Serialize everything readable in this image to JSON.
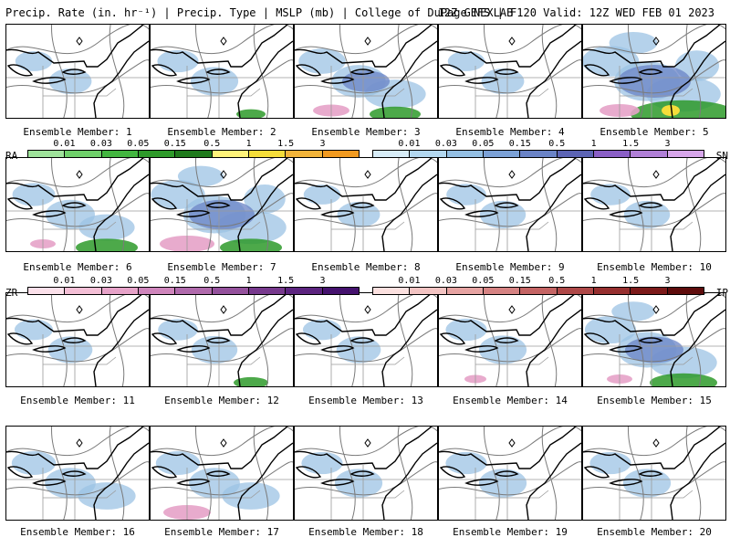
{
  "header": {
    "left": "Precip. Rate (in. hr⁻¹) | Precip. Type | MSLP (mb) | College of DuPage NEXLAB",
    "right": "12Z GEFS | F120 Valid: 12Z WED FEB 01 2023"
  },
  "members": [
    {
      "label": "Ensemble Member: 1",
      "blue": 0.3,
      "pink": 0,
      "green": 0,
      "yellow": 0
    },
    {
      "label": "Ensemble Member: 2",
      "blue": 0.45,
      "pink": 0,
      "green": 0.1,
      "yellow": 0
    },
    {
      "label": "Ensemble Member: 3",
      "blue": 0.65,
      "pink": 0.35,
      "green": 0.3,
      "yellow": 0
    },
    {
      "label": "Ensemble Member: 4",
      "blue": 0.3,
      "pink": 0,
      "green": 0,
      "yellow": 0
    },
    {
      "label": "Ensemble Member: 5",
      "blue": 1.0,
      "pink": 0.4,
      "green": 0.8,
      "yellow": 0.3
    },
    {
      "label": "Ensemble Member: 6",
      "blue": 0.5,
      "pink": 0.2,
      "green": 0.4,
      "yellow": 0
    },
    {
      "label": "Ensemble Member: 7",
      "blue": 0.9,
      "pink": 0.6,
      "green": 0.4,
      "yellow": 0
    },
    {
      "label": "Ensemble Member: 8",
      "blue": 0.3,
      "pink": 0,
      "green": 0,
      "yellow": 0
    },
    {
      "label": "Ensemble Member: 9",
      "blue": 0.4,
      "pink": 0,
      "green": 0,
      "yellow": 0
    },
    {
      "label": "Ensemble Member: 10",
      "blue": 0.4,
      "pink": 0,
      "green": 0,
      "yellow": 0
    },
    {
      "label": "Ensemble Member: 11",
      "blue": 0.35,
      "pink": 0,
      "green": 0,
      "yellow": 0
    },
    {
      "label": "Ensemble Member: 12",
      "blue": 0.4,
      "pink": 0,
      "green": 0.15,
      "yellow": 0
    },
    {
      "label": "Ensemble Member: 13",
      "blue": 0.35,
      "pink": 0,
      "green": 0,
      "yellow": 0
    },
    {
      "label": "Ensemble Member: 14",
      "blue": 0.45,
      "pink": 0.15,
      "green": 0,
      "yellow": 0
    },
    {
      "label": "Ensemble Member: 15",
      "blue": 0.8,
      "pink": 0.2,
      "green": 0.45,
      "yellow": 0
    },
    {
      "label": "Ensemble Member: 16",
      "blue": 0.55,
      "pink": 0,
      "green": 0,
      "yellow": 0
    },
    {
      "label": "Ensemble Member: 17",
      "blue": 0.55,
      "pink": 0.5,
      "green": 0,
      "yellow": 0
    },
    {
      "label": "Ensemble Member: 18",
      "blue": 0.45,
      "pink": 0,
      "green": 0,
      "yellow": 0
    },
    {
      "label": "Ensemble Member: 19",
      "blue": 0.45,
      "pink": 0,
      "green": 0,
      "yellow": 0
    },
    {
      "label": "Ensemble Member: 20",
      "blue": 0.45,
      "pink": 0,
      "green": 0,
      "yellow": 0
    }
  ],
  "colorbars": {
    "rain": {
      "code": "RA",
      "ticks": [
        "0.01",
        "0.03",
        "0.05",
        "0.15",
        "0.5",
        "1",
        "1.5",
        "3"
      ],
      "colors": [
        "#9ee29a",
        "#6fd06a",
        "#43b640",
        "#2e9a2a",
        "#1f7a1c",
        "#fff37a",
        "#f5dd3a",
        "#f2b43a",
        "#f19a20"
      ]
    },
    "snow": {
      "code": "SN",
      "ticks": [
        "0.01",
        "0.03",
        "0.05",
        "0.15",
        "0.5",
        "1",
        "1.5",
        "3"
      ],
      "colors": [
        "#d7ecf7",
        "#b2d7ef",
        "#93bfe3",
        "#7ba1d6",
        "#6a83c6",
        "#5c64b4",
        "#8a5fc6",
        "#b07fd6",
        "#d7a6ea"
      ]
    },
    "zr": {
      "code": "ZR",
      "ticks": [
        "0.01",
        "0.03",
        "0.05",
        "0.15",
        "0.5",
        "1",
        "1.5",
        "3"
      ],
      "colors": [
        "#fbe0ea",
        "#f4bfd6",
        "#e6a2c8",
        "#cf85bc",
        "#b06aac",
        "#94519c",
        "#77398d",
        "#5c247f",
        "#45126e"
      ]
    },
    "ip": {
      "code": "IP",
      "ticks": [
        "0.01",
        "0.03",
        "0.05",
        "0.15",
        "0.5",
        "1",
        "1.5",
        "3"
      ],
      "colors": [
        "#fbe0df",
        "#f2c3c2",
        "#e6a3a2",
        "#d68383",
        "#c46464",
        "#ae4848",
        "#962f2f",
        "#7c1a1a",
        "#5e0c0c"
      ]
    }
  }
}
